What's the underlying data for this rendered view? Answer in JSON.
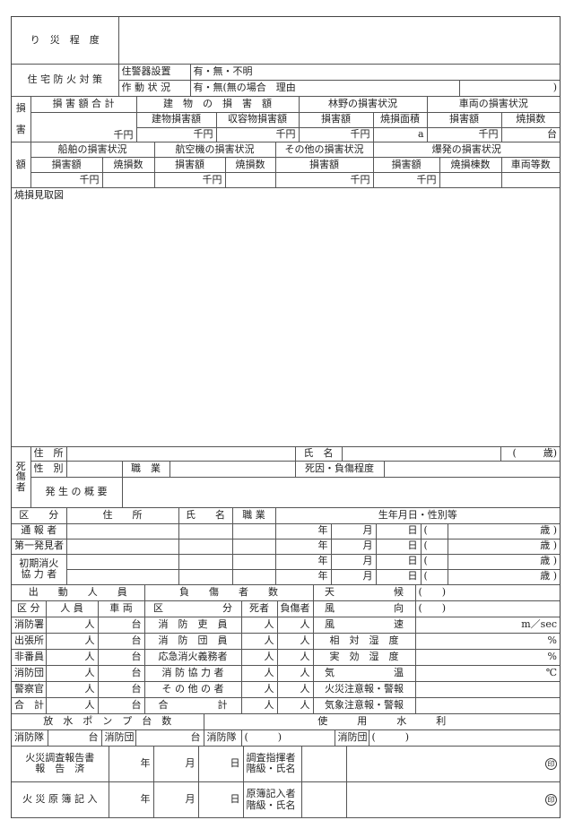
{
  "disaster_degree": {
    "label": "り　災　程　度"
  },
  "home_fire_prevention": {
    "label": "住 宅 防 火 対 策",
    "alarm_label": "住警器設置",
    "alarm_options": "有・無・不明",
    "operation_label": "作 動 状 況",
    "operation_options": "有・無(無の場合　理由",
    "operation_close": ")"
  },
  "damage": {
    "label": [
      "損",
      "害",
      "額"
    ],
    "total": "損 害 額 合 計",
    "building": "建　物　の　損　害　額",
    "building_dmg": "建物損害額",
    "contents_dmg": "収容物損害額",
    "forest": "林野の損害状況",
    "vehicle": "車両の損害状況",
    "amount": "損害額",
    "burned_area": "焼損面積",
    "burned_count": "焼損数",
    "ship": "船舶の損害状況",
    "aircraft": "航空機の損害状況",
    "other": "その他の損害状況",
    "explosion": "爆発の損害状況",
    "burned_buildings": "焼損棟数",
    "vehicle_count": "車両等数",
    "unit_yen": "千円",
    "unit_area": "a",
    "unit_vehicle": "台"
  },
  "sketch": {
    "label": "焼損見取図"
  },
  "casualty": {
    "label": [
      "死",
      "傷",
      "者"
    ],
    "address": "住　所",
    "name": "氏　名",
    "age_open": "(",
    "age_close": "歳)",
    "sex": "性　別",
    "occupation": "職　業",
    "cause": "死因・負傷程度",
    "summary": "発 生 の 概 要"
  },
  "persons": {
    "headers": [
      "区　　分",
      "住　　所",
      "氏　　名",
      "職 業",
      "生年月日・性別等"
    ],
    "rows": [
      "通 報 者",
      "第一発見者",
      "初期消火",
      "協 力 者"
    ],
    "date": {
      "year": "年",
      "month": "月",
      "day": "日",
      "open": "(",
      "age": "歳",
      "close": ")"
    }
  },
  "dispatch": {
    "title": "出　　動　　人　　員",
    "injury_title": "負　　傷　　者　　数",
    "col_kubun": "区 分",
    "col_staff": "人 員",
    "col_vehicle": "車 両",
    "col_kubun2": "区　　　　　　分",
    "col_dead": "死者",
    "col_injured": "負傷者",
    "unit_person": "人",
    "unit_vehicle": "台",
    "rows": [
      {
        "unit": "消防署",
        "injury": "消　防　吏　員",
        "weather": "風　　　　　　速",
        "wunit": "m／sec"
      },
      {
        "unit": "出張所",
        "injury": "消　防　団　員",
        "weather": "相　対　湿　度",
        "wunit": "%"
      },
      {
        "unit": "非番員",
        "injury": "応急消火義務者",
        "weather": "実　効　湿　度",
        "wunit": "%"
      },
      {
        "unit": "消防団",
        "injury": "消 防 協 力 者",
        "weather": "気　　　　　　温",
        "wunit": "℃"
      },
      {
        "unit": "警察官",
        "injury": "そ の 他 の 者",
        "weather": "火災注意報・警報",
        "wunit": ""
      },
      {
        "unit": "合　計",
        "injury": "合　　　　　計",
        "weather": "気象注意報・警報",
        "wunit": ""
      }
    ],
    "weather_label": "天　　　　　　候",
    "wind_dir_label": "風　　　　　　向",
    "paren": "(　　)"
  },
  "pumps": {
    "title": "放　水　ポ　ン　プ　台　数",
    "water_title": "使　　　用　　　水　　　利",
    "fire_dept": "消防隊",
    "fire_corps": "消防団",
    "unit": "台",
    "paren": "(　　　)"
  },
  "records": {
    "report_label": [
      "火災調査報告書",
      "報　告　済"
    ],
    "ledger_label": "火 災 原 簿 記 入",
    "year": "年",
    "month": "月",
    "day": "日",
    "commander": [
      "調査指揮者",
      "階級・氏名"
    ],
    "recorder": [
      "原簿記入者",
      "階級・氏名"
    ],
    "seal": "印"
  }
}
